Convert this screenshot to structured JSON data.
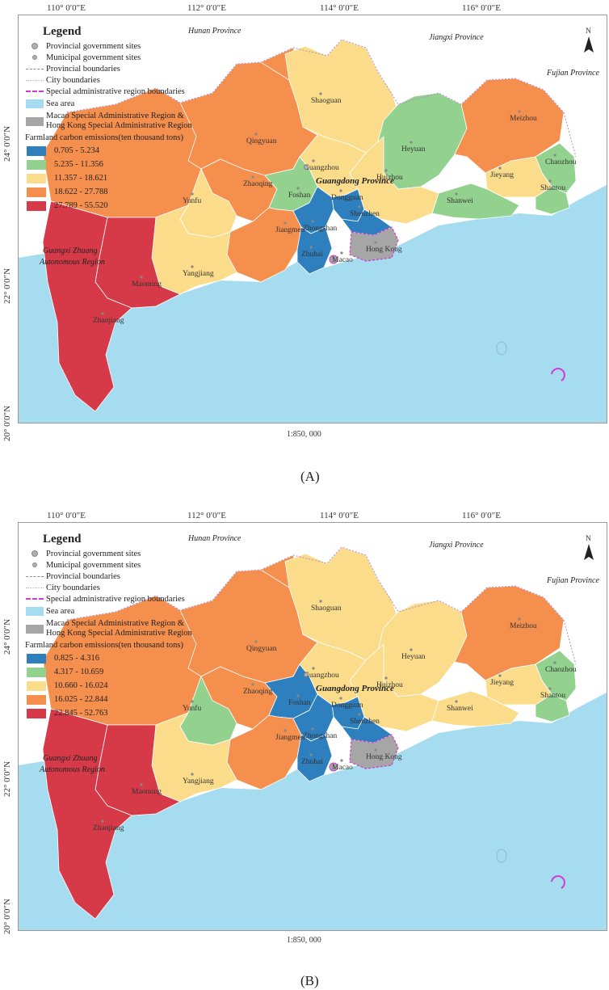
{
  "colors": {
    "sea": "#a6dcef",
    "c1": "#2e7fbd",
    "c2": "#92d18e",
    "c3": "#fbdc8a",
    "c4": "#f58f4e",
    "c5": "#d63a48",
    "sar": "#a6a6a6"
  },
  "coords": {
    "lon110": "110° 0′0″E",
    "lon112": "112° 0′0″E",
    "lon114": "114° 0′0″E",
    "lon116": "116° 0′0″E",
    "lat24": "24° 0′0″N",
    "lat22": "22° 0′0″N",
    "lat20": "20° 0′0″N"
  },
  "scale": "1:850, 000",
  "legend": {
    "title": "Legend",
    "provincial_sites": "Provincial government sites",
    "municipal_sites": "Municipal government sites",
    "provincial_boundaries": "Provincial boundaries",
    "city_boundaries": "City boundaries",
    "sar_boundaries": "Special administrative region boundaries",
    "sea_area": "Sea area",
    "sar_label_1": "Macao Special Administrative Region &",
    "sar_label_2": "Hong Kong Special Administrative Region",
    "class_title": "Farmland carbon emissions(ten thousand tons)"
  },
  "neighbors": {
    "hunan": "Hunan Province",
    "jiangxi": "Jiangxi Province",
    "fujian": "Fujian Province",
    "guangxi_1": "Guangxi Zhuang",
    "guangxi_2": "Autonomous Region",
    "guangdong": "Guangdong Province"
  },
  "cities": {
    "shaoguan": "Shaoguan",
    "qingyuan": "Qingyuan",
    "heyuan": "Heyuan",
    "meizhou": "Meizhou",
    "chaozhou": "Chaozhou",
    "shantou": "Shantou",
    "jieyang": "Jieyang",
    "shanwei": "Shanwei",
    "huizhou": "Huizhou",
    "guangzhou": "Guangzhou",
    "zhaoqing": "Zhaoqing",
    "foshan": "Foshan",
    "dongguan": "Dongguan",
    "shenzhen": "Shenzhen",
    "yunfu": "Yunfu",
    "jiangmen": "Jiangmen",
    "zhongshan": "Zhongshan",
    "zhuhai": "Zhuhai",
    "macao": "Macao",
    "hongkong": "Hong Kong",
    "yangjiang": "Yangjiang",
    "maoming": "Maoming",
    "zhanjiang": "Zhanjiang"
  },
  "maps": [
    {
      "caption": "(A)",
      "classes": [
        "0.705 - 5.234",
        "5.235 - 11.356",
        "11.357 - 18.621",
        "18.622 - 27.788",
        "27.789 - 55.520"
      ],
      "city_class": {
        "shaoguan": 3,
        "qingyuan": 4,
        "heyuan": 2,
        "meizhou": 4,
        "chaozhou": 2,
        "shantou": 2,
        "jieyang": 3,
        "shanwei": 2,
        "huizhou": 3,
        "guangzhou": 3,
        "zhaoqing": 4,
        "foshan": 2,
        "dongguan": 1,
        "shenzhen": 1,
        "yunfu": 3,
        "jiangmen": 4,
        "zhongshan": 1,
        "zhuhai": 1,
        "yangjiang": 3,
        "maoming": 5,
        "zhanjiang": 5,
        "west_north": 4
      }
    },
    {
      "caption": "(B)",
      "classes": [
        "0.825 - 4.316",
        "4.317 - 10.659",
        "10.660 - 16.024",
        "16.025 - 22.844",
        "22.845 - 52.763"
      ],
      "city_class": {
        "shaoguan": 3,
        "qingyuan": 4,
        "heyuan": 3,
        "meizhou": 4,
        "chaozhou": 2,
        "shantou": 2,
        "jieyang": 3,
        "shanwei": 3,
        "huizhou": 3,
        "guangzhou": 3,
        "zhaoqing": 4,
        "foshan": 1,
        "dongguan": 1,
        "shenzhen": 1,
        "yunfu": 2,
        "jiangmen": 4,
        "zhongshan": 1,
        "zhuhai": 1,
        "yangjiang": 3,
        "maoming": 5,
        "zhanjiang": 5,
        "west_north": 4
      }
    }
  ]
}
